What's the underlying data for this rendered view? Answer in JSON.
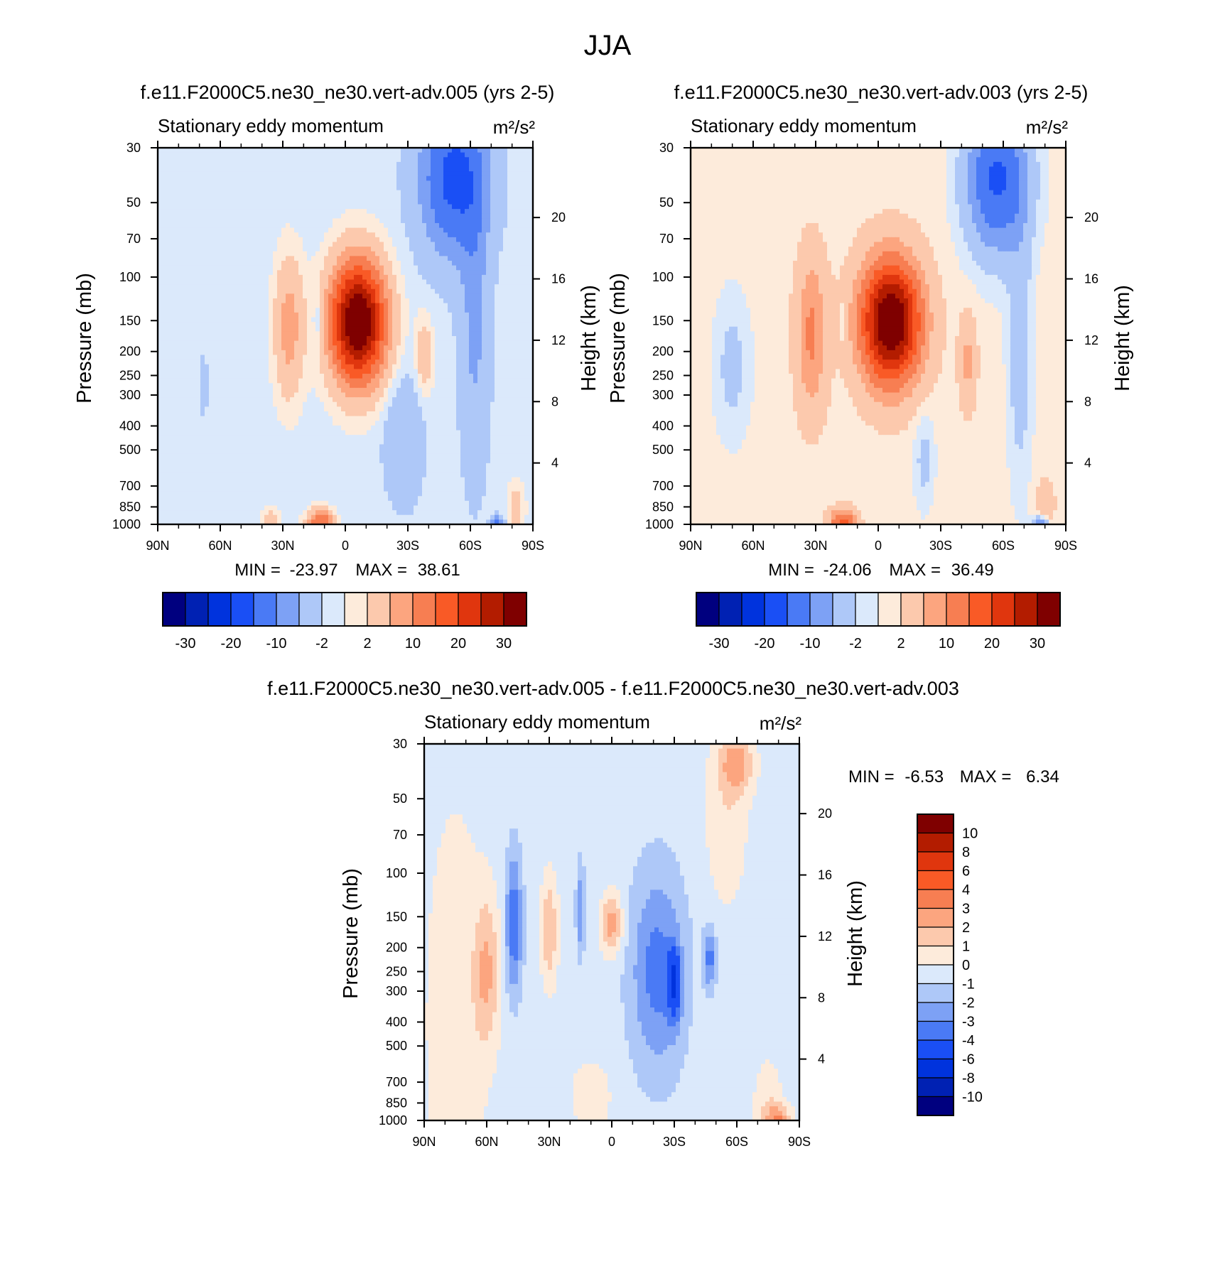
{
  "figure": {
    "title": "JJA"
  },
  "colors": {
    "div16": [
      "#00007f",
      "#0021b3",
      "#0033dd",
      "#1a4ff5",
      "#4a7af5",
      "#7da1f5",
      "#aec8f8",
      "#dbe9fb",
      "#fdebdb",
      "#fcc9ad",
      "#fca57f",
      "#f77e52",
      "#f95a26",
      "#e0360e",
      "#b31c00",
      "#7f0000"
    ],
    "div14": [
      "#00007f",
      "#0021b3",
      "#0033dd",
      "#1a4ff5",
      "#4a7af5",
      "#aec8f8",
      "#dbe9fb",
      "#fdebdb",
      "#fcc9ad",
      "#fca57f",
      "#f77e52",
      "#f95a26",
      "#e0360e",
      "#7f0000"
    ]
  },
  "chart_data": [
    {
      "id": "p1",
      "type": "heatmap",
      "title": "f.e11.F2000C5.ne30_ne30.vert-adv.005 (yrs 2-5)",
      "left_label": "Stationary eddy momentum",
      "units": "m²/s²",
      "ylabel": "Pressure (mb)",
      "ylabel_right": "Height (km)",
      "x_ticks": [
        "90N",
        "60N",
        "30N",
        "0",
        "30S",
        "60S",
        "90S"
      ],
      "xlim": [
        90,
        -90
      ],
      "y_ticks": [
        30,
        50,
        70,
        100,
        150,
        200,
        250,
        300,
        400,
        500,
        700,
        850,
        1000
      ],
      "ylim": [
        30,
        1000
      ],
      "height_ticks": [
        20,
        16,
        12,
        8,
        4
      ],
      "stats": {
        "min_label": "MIN =",
        "min": "-23.97",
        "max_label": "MAX =",
        "max": "38.61"
      },
      "levels": [
        -30,
        -25,
        -20,
        -15,
        -10,
        -6,
        -2,
        0,
        2,
        6,
        10,
        15,
        20,
        25,
        30
      ],
      "colorbar_labels": [
        "-30",
        "-20",
        "-10",
        "-2",
        "2",
        "10",
        "20",
        "30"
      ],
      "colorbar_orientation": "horizontal",
      "background_value": -1,
      "features": [
        {
          "lat": 27,
          "p": 160,
          "value": 9,
          "dlat": 7,
          "dp_log": 0.28
        },
        {
          "lat": -6,
          "p": 152,
          "value": 38.6,
          "dlat": 13,
          "dp_log": 0.24
        },
        {
          "lat": -38,
          "p": 210,
          "value": 6,
          "dlat": 4,
          "dp_log": 0.16
        },
        {
          "lat": -52,
          "p": 40,
          "value": -16,
          "dlat": 16,
          "dp_log": 0.3
        },
        {
          "lat": -62,
          "p": 150,
          "value": -6,
          "dlat": 7,
          "dp_log": 0.6
        },
        {
          "lat": -28,
          "p": 450,
          "value": -5,
          "dlat": 9,
          "dp_log": 0.25
        },
        {
          "lat": 13,
          "p": 150,
          "value": -4,
          "dlat": 3,
          "dp_log": 0.1
        },
        {
          "lat": 68,
          "p": 270,
          "value": -3,
          "dlat": 2,
          "dp_log": 0.12
        },
        {
          "lat": 12,
          "p": 980,
          "value": 16,
          "dlat": 6,
          "dp_log": 0.05
        },
        {
          "lat": 36,
          "p": 950,
          "value": 4,
          "dlat": 5,
          "dp_log": 0.05
        },
        {
          "lat": -82,
          "p": 850,
          "value": 5,
          "dlat": 4,
          "dp_log": 0.1
        },
        {
          "lat": -73,
          "p": 990,
          "value": -10,
          "dlat": 3,
          "dp_log": 0.03
        }
      ]
    },
    {
      "id": "p2",
      "type": "heatmap",
      "title": "f.e11.F2000C5.ne30_ne30.vert-adv.003 (yrs 2-5)",
      "left_label": "Stationary eddy momentum",
      "units": "m²/s²",
      "ylabel": "Pressure (mb)",
      "ylabel_right": "Height (km)",
      "x_ticks": [
        "90N",
        "60N",
        "30N",
        "0",
        "30S",
        "60S",
        "90S"
      ],
      "xlim": [
        90,
        -90
      ],
      "y_ticks": [
        30,
        50,
        70,
        100,
        150,
        200,
        250,
        300,
        400,
        500,
        700,
        850,
        1000
      ],
      "ylim": [
        30,
        1000
      ],
      "height_ticks": [
        20,
        16,
        12,
        8,
        4
      ],
      "stats": {
        "min_label": "MIN =",
        "min": "-24.06",
        "max_label": "MAX =",
        "max": "36.49"
      },
      "levels": [
        -30,
        -25,
        -20,
        -15,
        -10,
        -6,
        -2,
        0,
        2,
        6,
        10,
        15,
        20,
        25,
        30
      ],
      "colorbar_labels": [
        "-30",
        "-20",
        "-10",
        "-2",
        "2",
        "10",
        "20",
        "30"
      ],
      "colorbar_orientation": "horizontal",
      "background_value": 1,
      "features": [
        {
          "lat": 32,
          "p": 170,
          "value": 10,
          "dlat": 7,
          "dp_log": 0.3
        },
        {
          "lat": -6,
          "p": 152,
          "value": 36.5,
          "dlat": 14,
          "dp_log": 0.24
        },
        {
          "lat": -43,
          "p": 220,
          "value": 6,
          "dlat": 4,
          "dp_log": 0.18
        },
        {
          "lat": -57,
          "p": 40,
          "value": -17,
          "dlat": 15,
          "dp_log": 0.3
        },
        {
          "lat": -68,
          "p": 200,
          "value": -5,
          "dlat": 6,
          "dp_log": 0.55
        },
        {
          "lat": 70,
          "p": 230,
          "value": -4,
          "dlat": 9,
          "dp_log": 0.3
        },
        {
          "lat": -22,
          "p": 550,
          "value": -4,
          "dlat": 5,
          "dp_log": 0.2
        },
        {
          "lat": 17,
          "p": 150,
          "value": -3,
          "dlat": 2,
          "dp_log": 0.08
        },
        {
          "lat": 17,
          "p": 980,
          "value": 16,
          "dlat": 6,
          "dp_log": 0.05
        },
        {
          "lat": -78,
          "p": 990,
          "value": -12,
          "dlat": 4,
          "dp_log": 0.03
        },
        {
          "lat": -80,
          "p": 850,
          "value": 5,
          "dlat": 4,
          "dp_log": 0.1
        }
      ]
    },
    {
      "id": "p3",
      "type": "heatmap",
      "title": "f.e11.F2000C5.ne30_ne30.vert-adv.005 - f.e11.F2000C5.ne30_ne30.vert-adv.003",
      "left_label": "Stationary eddy momentum",
      "units": "m²/s²",
      "ylabel": "Pressure (mb)",
      "ylabel_right": "Height (km)",
      "x_ticks": [
        "90N",
        "60N",
        "30N",
        "0",
        "30S",
        "60S",
        "90S"
      ],
      "xlim": [
        90,
        -90
      ],
      "y_ticks": [
        30,
        50,
        70,
        100,
        150,
        200,
        250,
        300,
        400,
        500,
        700,
        850,
        1000
      ],
      "ylim": [
        30,
        1000
      ],
      "height_ticks": [
        20,
        16,
        12,
        8,
        4
      ],
      "stats": {
        "min_label": "MIN =",
        "min": "-6.53",
        "max_label": "MAX =",
        "max": "6.34"
      },
      "levels": [
        -10,
        -8,
        -6,
        -4,
        -3,
        -2,
        -1,
        0,
        1,
        2,
        3,
        4,
        6,
        8,
        10
      ],
      "colorbar_labels": [
        "10",
        "8",
        "6",
        "4",
        "3",
        "2",
        "1",
        "0",
        "-1",
        "-2",
        "-3",
        "-4",
        "-6",
        "-8",
        "-10"
      ],
      "colorbar_orientation": "vertical",
      "background_value": -0.5,
      "features": [
        {
          "lat": 75,
          "p": 400,
          "value": 1.2,
          "dlat": 15,
          "dp_log": 0.9
        },
        {
          "lat": 60,
          "p": 250,
          "value": 2.5,
          "dlat": 6,
          "dp_log": 0.3
        },
        {
          "lat": 30,
          "p": 170,
          "value": 2.5,
          "dlat": 4,
          "dp_log": 0.22
        },
        {
          "lat": 0,
          "p": 160,
          "value": 3.2,
          "dlat": 5,
          "dp_log": 0.12
        },
        {
          "lat": 47,
          "p": 160,
          "value": -3.5,
          "dlat": 4,
          "dp_log": 0.28
        },
        {
          "lat": 15,
          "p": 140,
          "value": -2.5,
          "dlat": 2,
          "dp_log": 0.18
        },
        {
          "lat": -22,
          "p": 250,
          "value": -3,
          "dlat": 13,
          "dp_log": 0.4
        },
        {
          "lat": -30,
          "p": 280,
          "value": -4.5,
          "dlat": 3,
          "dp_log": 0.14
        },
        {
          "lat": -47,
          "p": 220,
          "value": -3,
          "dlat": 3,
          "dp_log": 0.12
        },
        {
          "lat": -60,
          "p": 36,
          "value": 2.8,
          "dlat": 8,
          "dp_log": 0.12
        },
        {
          "lat": -55,
          "p": 60,
          "value": 1.3,
          "dlat": 10,
          "dp_log": 0.35
        },
        {
          "lat": -80,
          "p": 990,
          "value": 3,
          "dlat": 6,
          "dp_log": 0.06
        },
        {
          "lat": -75,
          "p": 900,
          "value": 1.3,
          "dlat": 7,
          "dp_log": 0.2
        },
        {
          "lat": 10,
          "p": 800,
          "value": 1.2,
          "dlat": 10,
          "dp_log": 0.15
        }
      ]
    }
  ]
}
